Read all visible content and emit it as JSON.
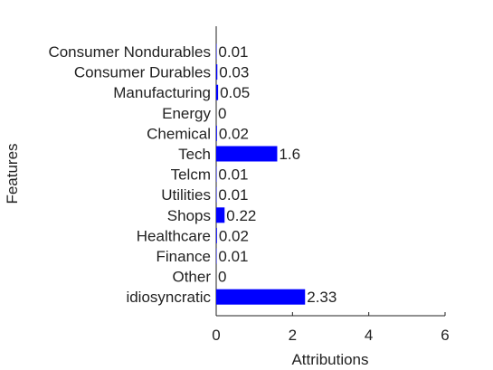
{
  "chart_data": {
    "type": "bar",
    "orientation": "horizontal",
    "categories": [
      "Consumer Nondurables",
      "Consumer Durables",
      "Manufacturing",
      "Energy",
      "Chemical",
      "Tech",
      "Telcm",
      "Utilities",
      "Shops",
      "Healthcare",
      "Finance",
      "Other",
      "idiosyncratic"
    ],
    "values": [
      0.01,
      0.03,
      0.05,
      0,
      0.02,
      1.6,
      0.01,
      0.01,
      0.22,
      0.02,
      0.01,
      0,
      2.33
    ],
    "value_labels": [
      "0.01",
      "0.03",
      "0.05",
      "0",
      "0.02",
      "1.6",
      "0.01",
      "0.01",
      "0.22",
      "0.02",
      "0.01",
      "0",
      "2.33"
    ],
    "xlabel": "Attributions",
    "ylabel": "Features",
    "xlim": [
      0,
      6
    ],
    "xticks": [
      "0",
      "2",
      "4",
      "6"
    ],
    "bar_color": "#0000ff",
    "grid": false
  }
}
